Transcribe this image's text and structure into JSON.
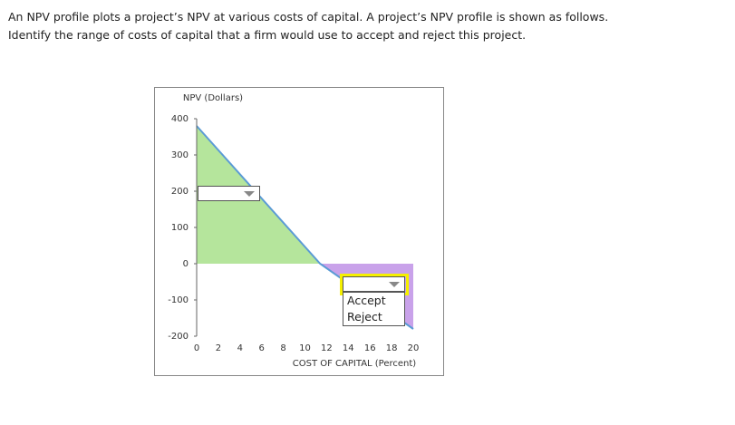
{
  "question": "An NPV profile plots a project’s NPV at various costs of capital. A project’s NPV profile is shown as follows. Identify the range of costs of capital that a firm would use to accept and reject this project.",
  "chart_data": {
    "type": "area",
    "ylabel": "NPV (Dollars)",
    "xlabel": "COST OF CAPITAL (Percent)",
    "x": [
      0,
      11.4,
      20
    ],
    "values": [
      380,
      0,
      -180
    ],
    "color": "#5b9bd5",
    "positive_fill": "#b5e59c",
    "negative_fill": "#c9a2ea",
    "xlim": [
      0,
      20
    ],
    "xticks": [
      0,
      2,
      4,
      6,
      8,
      10,
      12,
      14,
      16,
      18,
      20
    ],
    "ylim": [
      -200,
      400
    ],
    "yticks": [
      -200,
      -100,
      0,
      100,
      200,
      300,
      400
    ]
  },
  "dropdown_options": [
    "Accept",
    "Reject"
  ]
}
